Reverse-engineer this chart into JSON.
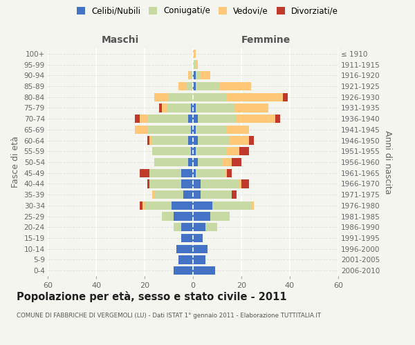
{
  "age_groups": [
    "0-4",
    "5-9",
    "10-14",
    "15-19",
    "20-24",
    "25-29",
    "30-34",
    "35-39",
    "40-44",
    "45-49",
    "50-54",
    "55-59",
    "60-64",
    "65-69",
    "70-74",
    "75-79",
    "80-84",
    "85-89",
    "90-94",
    "95-99",
    "100+"
  ],
  "birth_years": [
    "2006-2010",
    "2001-2005",
    "1996-2000",
    "1991-1995",
    "1986-1990",
    "1981-1985",
    "1976-1980",
    "1971-1975",
    "1966-1970",
    "1961-1965",
    "1956-1960",
    "1951-1955",
    "1946-1950",
    "1941-1945",
    "1936-1940",
    "1931-1935",
    "1926-1930",
    "1921-1925",
    "1916-1920",
    "1911-1915",
    "≤ 1910"
  ],
  "male": {
    "celibe": [
      8,
      6,
      7,
      5,
      5,
      8,
      9,
      4,
      5,
      5,
      2,
      1,
      2,
      1,
      2,
      1,
      0,
      0,
      0,
      0,
      0
    ],
    "coniugato": [
      0,
      0,
      0,
      0,
      3,
      5,
      11,
      12,
      13,
      13,
      14,
      16,
      15,
      18,
      17,
      10,
      10,
      3,
      1,
      0,
      0
    ],
    "vedovo": [
      0,
      0,
      0,
      0,
      0,
      0,
      1,
      1,
      0,
      0,
      0,
      0,
      1,
      5,
      3,
      2,
      6,
      3,
      1,
      0,
      0
    ],
    "divorziato": [
      0,
      0,
      0,
      0,
      0,
      0,
      1,
      0,
      1,
      4,
      0,
      0,
      1,
      0,
      2,
      1,
      0,
      0,
      0,
      0,
      0
    ]
  },
  "female": {
    "nubile": [
      9,
      5,
      6,
      4,
      5,
      7,
      8,
      3,
      3,
      1,
      2,
      1,
      2,
      1,
      2,
      1,
      0,
      1,
      1,
      0,
      0
    ],
    "coniugata": [
      0,
      0,
      0,
      0,
      5,
      8,
      16,
      13,
      16,
      12,
      10,
      13,
      13,
      13,
      16,
      16,
      14,
      10,
      2,
      1,
      0
    ],
    "vedova": [
      0,
      0,
      0,
      0,
      0,
      0,
      1,
      0,
      1,
      1,
      4,
      5,
      8,
      9,
      16,
      14,
      23,
      13,
      4,
      1,
      1
    ],
    "divorziata": [
      0,
      0,
      0,
      0,
      0,
      0,
      0,
      2,
      3,
      2,
      4,
      4,
      2,
      0,
      2,
      0,
      2,
      0,
      0,
      0,
      0
    ]
  },
  "colors": {
    "celibe": "#4472c4",
    "coniugato": "#c8daa4",
    "vedovo": "#ffc878",
    "divorziato": "#c0392b"
  },
  "xlim": 60,
  "title": "Popolazione per età, sesso e stato civile - 2011",
  "subtitle": "COMUNE DI FABBRICHE DI VERGEMOLI (LU) - Dati ISTAT 1° gennaio 2011 - Elaborazione TUTTITALIA.IT",
  "ylabel_left": "Fasce di età",
  "ylabel_right": "Anni di nascita",
  "xlabel_left": "Maschi",
  "xlabel_right": "Femmine",
  "bg_color": "#f5f5f0",
  "legend_labels": [
    "Celibi/Nubili",
    "Coniugati/e",
    "Vedovi/e",
    "Divorziati/e"
  ]
}
